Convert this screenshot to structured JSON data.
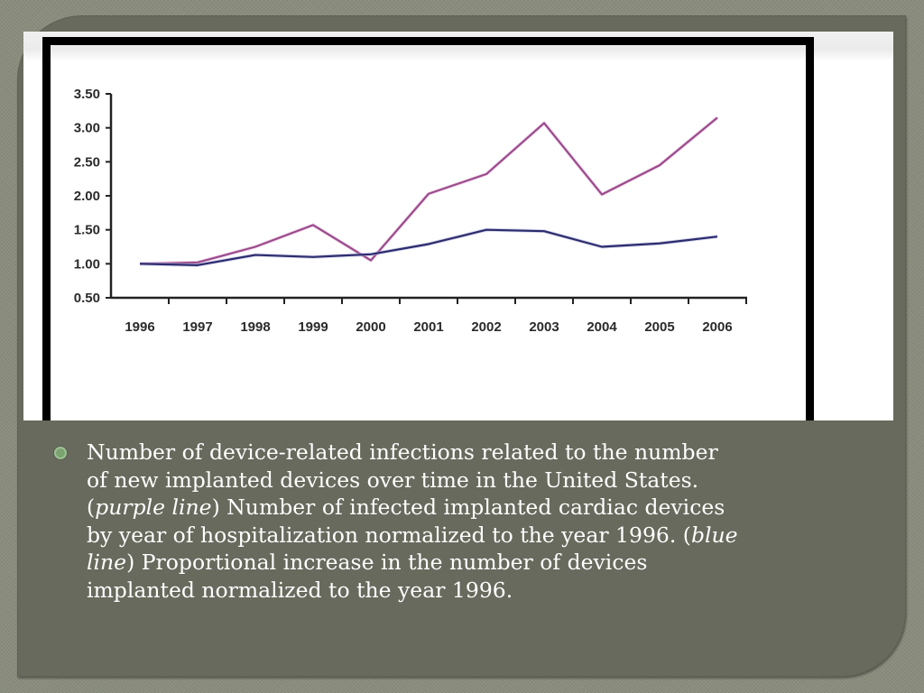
{
  "slide": {
    "background_color": "#676a5c",
    "outer_color": "#8a8d7d"
  },
  "chart_data": {
    "type": "line",
    "title": "",
    "xlabel": "",
    "ylabel": "",
    "x": [
      "1996",
      "1997",
      "1998",
      "1999",
      "2000",
      "2001",
      "2002",
      "2003",
      "2004",
      "2005",
      "2006"
    ],
    "y_ticks": [
      "3.50",
      "3.00",
      "2.50",
      "2.00",
      "1.50",
      "1.00",
      "0.50"
    ],
    "ylim": [
      0.5,
      3.5
    ],
    "grid": false,
    "legend": "none",
    "series": [
      {
        "name": "Infected implanted cardiac devices (normalized to 1996)",
        "color": "#9b4b8c",
        "values": [
          1.0,
          1.02,
          1.25,
          1.57,
          1.05,
          2.03,
          2.32,
          3.07,
          2.02,
          2.45,
          3.15
        ]
      },
      {
        "name": "Devices implanted (normalized to 1996)",
        "color": "#2c2c6e",
        "values": [
          1.0,
          0.98,
          1.13,
          1.1,
          1.14,
          1.29,
          1.5,
          1.48,
          1.25,
          1.3,
          1.4
        ]
      }
    ]
  },
  "caption": {
    "bullet_icon": "circle-bullet-icon",
    "parts": [
      {
        "text": "Number of device-related infections related to the number\nof new implanted devices over time in the United States.\n(",
        "italic": false
      },
      {
        "text": "purple line",
        "italic": true
      },
      {
        "text": ") Number of infected implanted cardiac devices\nby year of hospitalization normalized to the year 1996. (",
        "italic": false
      },
      {
        "text": "blue\nline",
        "italic": true
      },
      {
        "text": ") Proportional increase in the number of devices\nimplanted normalized to the year 1996.",
        "italic": false
      }
    ]
  }
}
